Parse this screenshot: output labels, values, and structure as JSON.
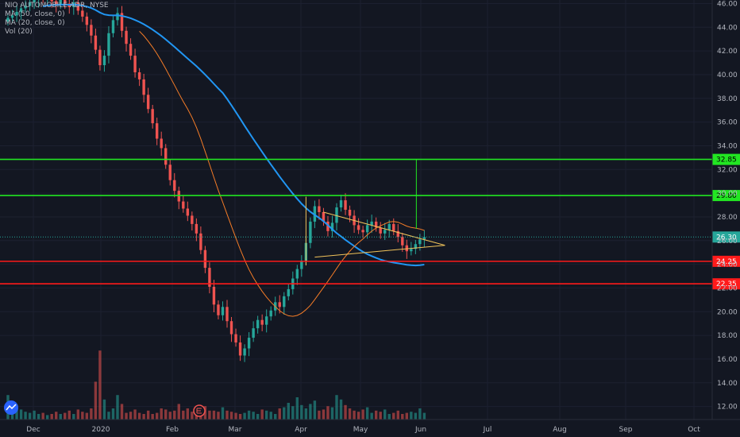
{
  "legend": {
    "symbol": "NIO AUTOMOBILE ADR, NYSE",
    "ma1": "MA (50, close, 0)",
    "ma2": "MA (20, close, 0)",
    "vol": "Vol (20)"
  },
  "colors": {
    "background": "#131722",
    "up": "#26a69a",
    "down": "#ef5350",
    "ma50": "#2196f3",
    "ma20": "#f57c27",
    "support": "#ff1a1a",
    "resistance": "#22e622",
    "triangle": "#f0c35a"
  },
  "chart_data": {
    "type": "candlestick",
    "ylim": [
      10.9,
      46.3
    ],
    "y_ticks": [
      12,
      14,
      16,
      18,
      20,
      22,
      24,
      26,
      28,
      30,
      32,
      34,
      36,
      38,
      40,
      42,
      44,
      46
    ],
    "x_labels": [
      "Dec",
      "2020",
      "Feb",
      "Mar",
      "Apr",
      "May",
      "Jun",
      "Jul",
      "Aug",
      "Sep",
      "Oct"
    ],
    "horizontal_levels": [
      {
        "value": 32.85,
        "label": "32.85",
        "kind": "resistance"
      },
      {
        "value": 29.8,
        "label": "29.80",
        "kind": "resistance"
      },
      {
        "value": 24.25,
        "label": "24.25",
        "kind": "support"
      },
      {
        "value": 22.35,
        "label": "22.35",
        "kind": "support"
      }
    ],
    "last_price": {
      "value": 26.3,
      "label": "26.30"
    },
    "closes": [
      44.8,
      45.0,
      45.3,
      45.6,
      45.8,
      46.1,
      46.3,
      46.5,
      46.4,
      46.6,
      46.2,
      45.9,
      46.3,
      46.0,
      45.7,
      46.1,
      45.4,
      44.9,
      44.2,
      43.3,
      42.1,
      40.8,
      41.6,
      43.5,
      44.6,
      45.2,
      43.7,
      42.6,
      41.6,
      40.2,
      39.6,
      38.3,
      37.1,
      35.9,
      34.6,
      33.8,
      32.4,
      31.1,
      30.2,
      29.3,
      28.7,
      28.1,
      27.4,
      26.6,
      25.2,
      23.7,
      22.1,
      20.6,
      19.7,
      20.4,
      19.2,
      18.1,
      17.4,
      16.3,
      16.9,
      17.8,
      18.6,
      19.3,
      18.9,
      19.6,
      20.1,
      20.8,
      20.4,
      21.3,
      21.9,
      22.8,
      23.6,
      24.3,
      25.8,
      27.6,
      28.9,
      28.4,
      27.6,
      26.8,
      27.5,
      28.8,
      29.4,
      28.6,
      28.1,
      27.3,
      26.9,
      26.7,
      27.3,
      27.6,
      27.1,
      26.6,
      26.9,
      27.4,
      26.8,
      26.3,
      25.6,
      25.1,
      25.3,
      25.7,
      26.1,
      26.3
    ],
    "volume": [
      0.22,
      0.13,
      0.11,
      0.09,
      0.07,
      0.06,
      0.08,
      0.05,
      0.06,
      0.04,
      0.05,
      0.07,
      0.05,
      0.06,
      0.08,
      0.05,
      0.09,
      0.07,
      0.06,
      0.1,
      0.34,
      0.62,
      0.18,
      0.07,
      0.1,
      0.22,
      0.14,
      0.06,
      0.07,
      0.09,
      0.06,
      0.05,
      0.08,
      0.05,
      0.06,
      0.1,
      0.09,
      0.07,
      0.08,
      0.14,
      0.08,
      0.1,
      0.07,
      0.09,
      0.09,
      0.12,
      0.08,
      0.08,
      0.07,
      0.11,
      0.08,
      0.07,
      0.06,
      0.05,
      0.06,
      0.08,
      0.07,
      0.05,
      0.09,
      0.08,
      0.07,
      0.05,
      0.1,
      0.11,
      0.15,
      0.12,
      0.2,
      0.13,
      0.1,
      0.14,
      0.17,
      0.08,
      0.09,
      0.12,
      0.11,
      0.22,
      0.18,
      0.13,
      0.1,
      0.08,
      0.07,
      0.09,
      0.11,
      0.06,
      0.08,
      0.07,
      0.09,
      0.05,
      0.06,
      0.08,
      0.05,
      0.06,
      0.07,
      0.06,
      0.1,
      0.06
    ]
  }
}
